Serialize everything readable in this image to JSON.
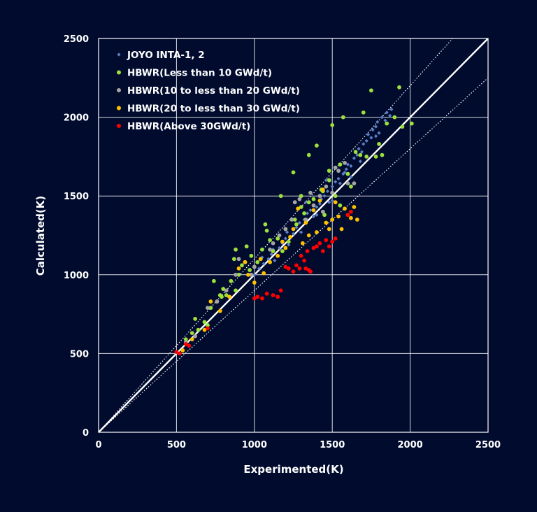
{
  "chart_data": {
    "type": "scatter",
    "xlabel": "Experimented(K)",
    "ylabel": "Calculated(K)",
    "xlim": [
      0,
      2500
    ],
    "ylim": [
      0,
      2500
    ],
    "xticks": [
      0,
      500,
      1000,
      1500,
      2000,
      2500
    ],
    "yticks": [
      0,
      500,
      1000,
      1500,
      2000,
      2500
    ],
    "grid": true,
    "legend_position": "top-left",
    "reference_lines": [
      {
        "slope": 1.0,
        "style": "solid",
        "color": "#ffffff"
      },
      {
        "slope": 1.1,
        "style": "dotted",
        "color": "#ffffff"
      },
      {
        "slope": 0.9,
        "style": "dotted",
        "color": "#ffffff"
      }
    ],
    "series": [
      {
        "name": "JOYO INTA-1, 2",
        "color": "#5b7fc9",
        "marker": "diamond",
        "points": [
          [
            1000,
            1000
          ],
          [
            1030,
            1040
          ],
          [
            1060,
            1070
          ],
          [
            1090,
            1100
          ],
          [
            1110,
            1130
          ],
          [
            1130,
            1090
          ],
          [
            1160,
            1170
          ],
          [
            1180,
            1200
          ],
          [
            1200,
            1230
          ],
          [
            1220,
            1190
          ],
          [
            1250,
            1260
          ],
          [
            1270,
            1300
          ],
          [
            1290,
            1330
          ],
          [
            1300,
            1270
          ],
          [
            1320,
            1350
          ],
          [
            1340,
            1390
          ],
          [
            1360,
            1410
          ],
          [
            1380,
            1370
          ],
          [
            1400,
            1430
          ],
          [
            1420,
            1450
          ],
          [
            1430,
            1480
          ],
          [
            1450,
            1500
          ],
          [
            1470,
            1530
          ],
          [
            1480,
            1460
          ],
          [
            1500,
            1560
          ],
          [
            1520,
            1590
          ],
          [
            1540,
            1610
          ],
          [
            1550,
            1580
          ],
          [
            1570,
            1640
          ],
          [
            1590,
            1670
          ],
          [
            1600,
            1700
          ],
          [
            1620,
            1690
          ],
          [
            1640,
            1740
          ],
          [
            1660,
            1760
          ],
          [
            1670,
            1800
          ],
          [
            1690,
            1780
          ],
          [
            1700,
            1830
          ],
          [
            1720,
            1850
          ],
          [
            1730,
            1890
          ],
          [
            1750,
            1870
          ],
          [
            1760,
            1920
          ],
          [
            1780,
            1940
          ],
          [
            1790,
            1970
          ],
          [
            1800,
            1900
          ],
          [
            1820,
            2000
          ],
          [
            1840,
            1980
          ],
          [
            1850,
            2030
          ],
          [
            1870,
            2010
          ],
          [
            1880,
            2050
          ],
          [
            1780,
            1880
          ],
          [
            1680,
            1720
          ],
          [
            1580,
            1650
          ],
          [
            1460,
            1600
          ],
          [
            1330,
            1460
          ],
          [
            1210,
            1270
          ],
          [
            1120,
            1160
          ],
          [
            1050,
            1110
          ],
          [
            1400,
            1380
          ],
          [
            1500,
            1470
          ],
          [
            1620,
            1620
          ]
        ]
      },
      {
        "name": "HBWR(Less than 10 GWd/t)",
        "color": "#9be03c",
        "marker": "circle",
        "points": [
          [
            560,
            590
          ],
          [
            600,
            630
          ],
          [
            620,
            720
          ],
          [
            640,
            650
          ],
          [
            680,
            700
          ],
          [
            720,
            790
          ],
          [
            740,
            960
          ],
          [
            760,
            830
          ],
          [
            780,
            870
          ],
          [
            800,
            910
          ],
          [
            820,
            870
          ],
          [
            850,
            960
          ],
          [
            870,
            1100
          ],
          [
            880,
            1160
          ],
          [
            900,
            1000
          ],
          [
            920,
            1060
          ],
          [
            950,
            1180
          ],
          [
            970,
            1030
          ],
          [
            1000,
            1050
          ],
          [
            1020,
            1080
          ],
          [
            1050,
            1160
          ],
          [
            1070,
            1320
          ],
          [
            1100,
            1220
          ],
          [
            1120,
            1150
          ],
          [
            1150,
            1230
          ],
          [
            1170,
            1500
          ],
          [
            1200,
            1290
          ],
          [
            1220,
            1210
          ],
          [
            1250,
            1650
          ],
          [
            1270,
            1320
          ],
          [
            1300,
            1430
          ],
          [
            1320,
            1390
          ],
          [
            1350,
            1760
          ],
          [
            1380,
            1480
          ],
          [
            1400,
            1820
          ],
          [
            1430,
            1540
          ],
          [
            1450,
            1380
          ],
          [
            1480,
            1600
          ],
          [
            1500,
            1950
          ],
          [
            1520,
            1500
          ],
          [
            1550,
            1700
          ],
          [
            1570,
            2000
          ],
          [
            1600,
            1640
          ],
          [
            1620,
            1560
          ],
          [
            1650,
            1780
          ],
          [
            1680,
            1760
          ],
          [
            1700,
            2030
          ],
          [
            1720,
            1750
          ],
          [
            1750,
            2170
          ],
          [
            1780,
            1750
          ],
          [
            1800,
            1830
          ],
          [
            1820,
            1760
          ],
          [
            1850,
            1960
          ],
          [
            1900,
            2000
          ],
          [
            1930,
            2190
          ],
          [
            1950,
            1940
          ],
          [
            2010,
            1960
          ],
          [
            1300,
            1500
          ],
          [
            1180,
            1150
          ],
          [
            1080,
            1280
          ],
          [
            980,
            1120
          ],
          [
            880,
            900
          ],
          [
            790,
            860
          ],
          [
            700,
            680
          ],
          [
            1440,
            1530
          ],
          [
            1550,
            1440
          ],
          [
            1350,
            1460
          ],
          [
            1260,
            1350
          ],
          [
            1480,
            1660
          ]
        ]
      },
      {
        "name": "HBWR(10 to less than 20 GWd/t)",
        "color": "#a5a5a5",
        "marker": "circle",
        "points": [
          [
            560,
            570
          ],
          [
            620,
            610
          ],
          [
            700,
            790
          ],
          [
            760,
            830
          ],
          [
            820,
            900
          ],
          [
            880,
            1000
          ],
          [
            940,
            1080
          ],
          [
            1000,
            1050
          ],
          [
            1040,
            1100
          ],
          [
            1100,
            1160
          ],
          [
            1160,
            1250
          ],
          [
            1200,
            1290
          ],
          [
            1240,
            1350
          ],
          [
            1290,
            1480
          ],
          [
            1330,
            1350
          ],
          [
            1380,
            1440
          ],
          [
            1420,
            1500
          ],
          [
            1460,
            1560
          ],
          [
            1500,
            1520
          ],
          [
            1540,
            1660
          ],
          [
            1580,
            1710
          ],
          [
            1600,
            1580
          ],
          [
            1640,
            1580
          ],
          [
            1520,
            1680
          ],
          [
            1440,
            1400
          ],
          [
            1360,
            1520
          ],
          [
            1260,
            1460
          ],
          [
            1120,
            1200
          ],
          [
            980,
            1000
          ],
          [
            900,
            1100
          ]
        ]
      },
      {
        "name": "HBWR(20 to less than 30 GWd/t)",
        "color": "#ffc000",
        "marker": "circle",
        "points": [
          [
            540,
            520
          ],
          [
            600,
            590
          ],
          [
            680,
            650
          ],
          [
            720,
            830
          ],
          [
            780,
            770
          ],
          [
            840,
            860
          ],
          [
            900,
            1040
          ],
          [
            940,
            1080
          ],
          [
            1000,
            950
          ],
          [
            1060,
            1010
          ],
          [
            1100,
            1080
          ],
          [
            1150,
            1120
          ],
          [
            1200,
            1170
          ],
          [
            1250,
            1290
          ],
          [
            1280,
            1420
          ],
          [
            1310,
            1200
          ],
          [
            1350,
            1250
          ],
          [
            1380,
            1410
          ],
          [
            1400,
            1270
          ],
          [
            1440,
            1540
          ],
          [
            1460,
            1330
          ],
          [
            1480,
            1290
          ],
          [
            1500,
            1350
          ],
          [
            1540,
            1370
          ],
          [
            1560,
            1290
          ],
          [
            1580,
            1420
          ],
          [
            1600,
            1380
          ],
          [
            1620,
            1360
          ],
          [
            1640,
            1430
          ],
          [
            1660,
            1350
          ],
          [
            1330,
            1330
          ],
          [
            1230,
            1240
          ],
          [
            1420,
            1470
          ],
          [
            1180,
            1210
          ],
          [
            1040,
            1100
          ],
          [
            960,
            1000
          ],
          [
            1520,
            1460
          ]
        ]
      },
      {
        "name": "HBWR(Above 30GWd/t)",
        "color": "#ff0000",
        "marker": "circle",
        "points": [
          [
            500,
            510
          ],
          [
            520,
            500
          ],
          [
            560,
            560
          ],
          [
            580,
            550
          ],
          [
            700,
            660
          ],
          [
            1000,
            850
          ],
          [
            1020,
            860
          ],
          [
            1050,
            850
          ],
          [
            1080,
            880
          ],
          [
            1120,
            870
          ],
          [
            1150,
            860
          ],
          [
            1170,
            900
          ],
          [
            1200,
            1050
          ],
          [
            1220,
            1040
          ],
          [
            1250,
            1020
          ],
          [
            1270,
            1060
          ],
          [
            1290,
            1040
          ],
          [
            1320,
            1090
          ],
          [
            1330,
            1040
          ],
          [
            1350,
            1030
          ],
          [
            1360,
            1020
          ],
          [
            1380,
            1170
          ],
          [
            1400,
            1180
          ],
          [
            1420,
            1200
          ],
          [
            1440,
            1150
          ],
          [
            1460,
            1220
          ],
          [
            1480,
            1180
          ],
          [
            1500,
            1210
          ],
          [
            1520,
            1230
          ],
          [
            1600,
            1380
          ],
          [
            1620,
            1400
          ],
          [
            1340,
            1150
          ],
          [
            1300,
            1120
          ]
        ]
      }
    ]
  }
}
